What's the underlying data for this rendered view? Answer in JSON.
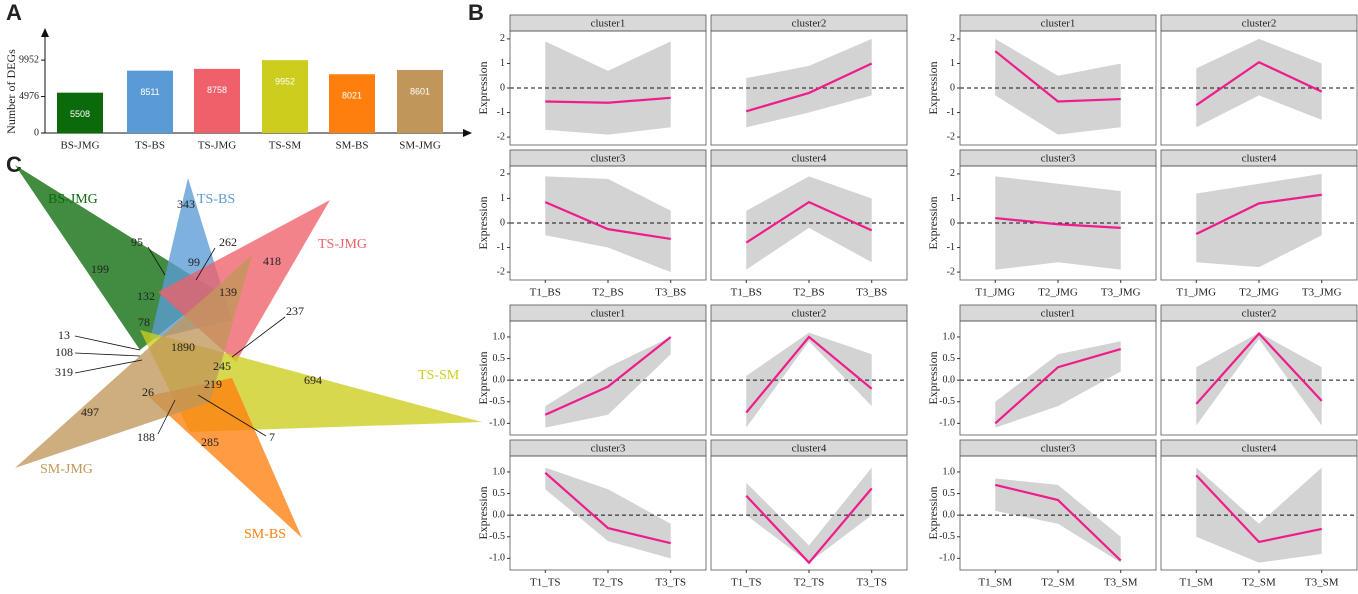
{
  "panels": [
    "A",
    "B",
    "C"
  ],
  "chart_data": [
    {
      "type": "bar",
      "ylabel": "Number of DEGs",
      "categories": [
        "BS-JMG",
        "TS-BS",
        "TS-JMG",
        "TS-SM",
        "SM-BS",
        "SM-JMG"
      ],
      "values": [
        5508,
        8511,
        8758,
        9952,
        8021,
        8601
      ],
      "colors": [
        "#0b6b0b",
        "#5b9bd5",
        "#f0606a",
        "#cdcd1e",
        "#ff7f0e",
        "#c0965a"
      ],
      "ylim": [
        0,
        12700
      ],
      "yticks": [
        0,
        4976,
        9952
      ]
    },
    {
      "type": "facet-line",
      "ylabel": "Expression",
      "categories": [
        "T1_BS",
        "T2_BS",
        "T3_BS"
      ],
      "ylim": [
        -2.2,
        2.2
      ],
      "yticks": [
        -2,
        -1,
        0,
        1,
        2
      ],
      "hline": 0,
      "band_color": "#d3d3d3",
      "color": "#ee1c8c",
      "facets": [
        {
          "title": "cluster1",
          "values": [
            -0.55,
            -0.6,
            -0.4
          ],
          "low": [
            -1.7,
            -1.9,
            -1.6
          ],
          "high": [
            1.9,
            0.7,
            1.9
          ]
        },
        {
          "title": "cluster2",
          "values": [
            -0.95,
            -0.2,
            1.0
          ],
          "low": [
            -1.6,
            -1.0,
            -0.3
          ],
          "high": [
            0.4,
            0.9,
            2.0
          ]
        },
        {
          "title": "cluster3",
          "values": [
            0.85,
            -0.25,
            -0.65
          ],
          "low": [
            -0.5,
            -1.0,
            -2.0
          ],
          "high": [
            1.9,
            1.8,
            0.5
          ]
        },
        {
          "title": "cluster4",
          "values": [
            -0.8,
            0.85,
            -0.3
          ],
          "low": [
            -1.9,
            -0.2,
            -1.6
          ],
          "high": [
            0.5,
            1.9,
            1.0
          ]
        }
      ]
    },
    {
      "type": "facet-line",
      "ylabel": "Expression",
      "categories": [
        "T1_JMG",
        "T2_JMG",
        "T3_JMG"
      ],
      "ylim": [
        -2.2,
        2.2
      ],
      "yticks": [
        -2,
        -1,
        0,
        1,
        2
      ],
      "hline": 0,
      "band_color": "#d3d3d3",
      "color": "#ee1c8c",
      "facets": [
        {
          "title": "cluster1",
          "values": [
            1.5,
            -0.55,
            -0.45
          ],
          "low": [
            -0.3,
            -1.9,
            -1.6
          ],
          "high": [
            2.0,
            0.5,
            1.0
          ]
        },
        {
          "title": "cluster2",
          "values": [
            -0.7,
            1.05,
            -0.15
          ],
          "low": [
            -1.6,
            -0.3,
            -1.3
          ],
          "high": [
            0.8,
            2.0,
            1.0
          ]
        },
        {
          "title": "cluster3",
          "values": [
            0.2,
            -0.05,
            -0.2
          ],
          "low": [
            -1.9,
            -1.6,
            -1.9
          ],
          "high": [
            1.9,
            1.6,
            1.3
          ]
        },
        {
          "title": "cluster4",
          "values": [
            -0.45,
            0.8,
            1.15
          ],
          "low": [
            -1.6,
            -1.8,
            -0.5
          ],
          "high": [
            1.2,
            1.6,
            2.0
          ]
        }
      ]
    },
    {
      "type": "facet-line",
      "ylabel": "Expression",
      "categories": [
        "T1_TS",
        "T2_TS",
        "T3_TS"
      ],
      "ylim": [
        -1.2,
        1.3
      ],
      "yticks": [
        {
          "value": -1,
          "label": "-1.0"
        },
        {
          "value": -0.5,
          "label": "-0.5"
        },
        {
          "value": 0,
          "label": "0.0"
        },
        {
          "value": 0.5,
          "label": "0.5"
        },
        {
          "value": 1,
          "label": "1.0"
        }
      ],
      "hline": 0,
      "band_color": "#d3d3d3",
      "color": "#ee1c8c",
      "facets": [
        {
          "title": "cluster1",
          "values": [
            -0.8,
            -0.15,
            1.0
          ],
          "low": [
            -1.1,
            -0.8,
            0.6
          ],
          "high": [
            -0.6,
            0.3,
            1.0
          ]
        },
        {
          "title": "cluster2",
          "values": [
            -0.75,
            1.0,
            -0.2
          ],
          "low": [
            -1.1,
            0.9,
            -0.6
          ],
          "high": [
            0.1,
            1.1,
            0.6
          ]
        },
        {
          "title": "cluster3",
          "values": [
            0.98,
            -0.3,
            -0.65
          ],
          "low": [
            0.6,
            -0.6,
            -1.0
          ],
          "high": [
            1.1,
            0.6,
            -0.2
          ]
        },
        {
          "title": "cluster4",
          "values": [
            0.45,
            -1.1,
            0.62
          ],
          "low": [
            0.0,
            -1.1,
            0.0
          ],
          "high": [
            0.75,
            -0.7,
            1.1
          ]
        }
      ]
    },
    {
      "type": "facet-line",
      "ylabel": "Expression",
      "categories": [
        "T1_SM",
        "T2_SM",
        "T3_SM"
      ],
      "ylim": [
        -1.2,
        1.3
      ],
      "yticks": [
        {
          "value": -1,
          "label": "-1.0"
        },
        {
          "value": -0.5,
          "label": "-0.5"
        },
        {
          "value": 0,
          "label": "0.0"
        },
        {
          "value": 0.5,
          "label": "0.5"
        },
        {
          "value": 1,
          "label": "1.0"
        }
      ],
      "hline": 0,
      "band_color": "#d3d3d3",
      "color": "#ee1c8c",
      "facets": [
        {
          "title": "cluster1",
          "values": [
            -1.0,
            0.3,
            0.72
          ],
          "low": [
            -1.1,
            -0.6,
            0.2
          ],
          "high": [
            -0.5,
            0.6,
            0.9
          ]
        },
        {
          "title": "cluster2",
          "values": [
            -0.55,
            1.08,
            -0.48
          ],
          "low": [
            -1.05,
            0.95,
            -1.05
          ],
          "high": [
            0.3,
            1.1,
            0.3
          ]
        },
        {
          "title": "cluster3",
          "values": [
            0.7,
            0.35,
            -1.05
          ],
          "low": [
            0.1,
            -0.2,
            -1.1
          ],
          "high": [
            0.85,
            0.7,
            -0.5
          ]
        },
        {
          "title": "cluster4",
          "values": [
            0.92,
            -0.62,
            -0.32
          ],
          "low": [
            -0.5,
            -1.1,
            -0.9
          ],
          "high": [
            1.1,
            -0.2,
            1.1
          ]
        }
      ]
    }
  ],
  "venn": {
    "sets": [
      {
        "name": "BS-JMG",
        "color": "#0b6b0b"
      },
      {
        "name": "TS-BS",
        "color": "#5b9bd5"
      },
      {
        "name": "TS-JMG",
        "color": "#f0606a"
      },
      {
        "name": "TS-SM",
        "color": "#cdcd1e"
      },
      {
        "name": "SM-BS",
        "color": "#ff7f0e"
      },
      {
        "name": "SM-JMG",
        "color": "#c0965a"
      }
    ],
    "regions": [
      95,
      343,
      262,
      199,
      99,
      418,
      132,
      139,
      78,
      237,
      13,
      108,
      319,
      1890,
      245,
      694,
      26,
      219,
      497,
      188,
      285,
      7
    ]
  }
}
